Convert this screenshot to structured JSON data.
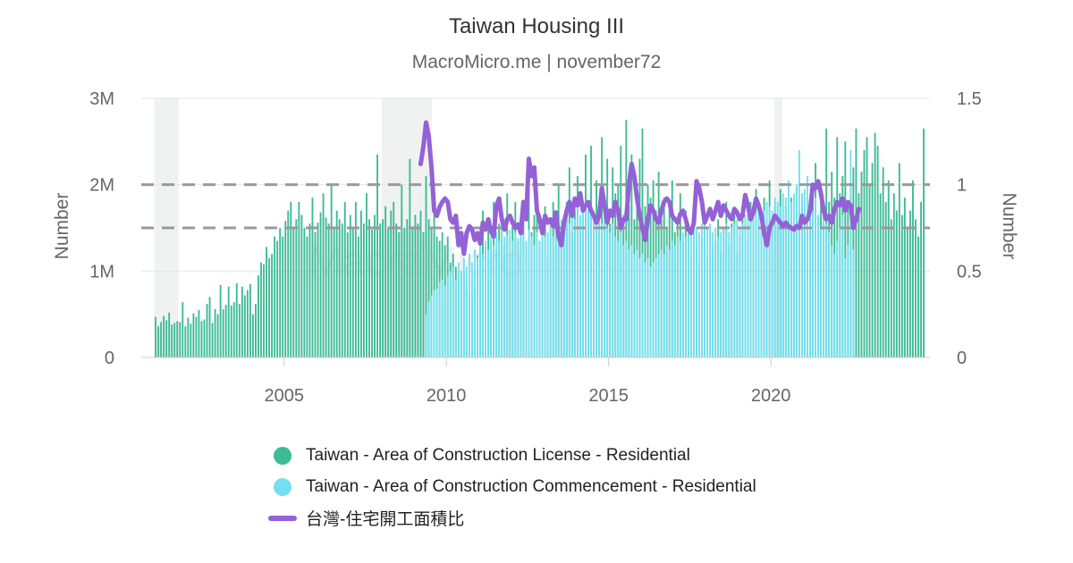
{
  "title": "Taiwan Housing III",
  "subtitle": "MacroMicro.me | november72",
  "watermark": "MacroMicro",
  "colors": {
    "license": "#3dbb94",
    "commencement": "#74dff0",
    "ratio": "#9461d6",
    "grid": "#e5e5e5",
    "shade": "#f0f2f1",
    "dash": "#9a9a9a",
    "axis_text": "#666666"
  },
  "chart_data": {
    "type": "bar",
    "title": "Taiwan Housing III",
    "subtitle": "MacroMicro.me | november72",
    "xlim": [
      2000.6,
      2024.9
    ],
    "x_ticks": [
      2005,
      2010,
      2015,
      2020
    ],
    "y_left": {
      "label": "Number",
      "lim": [
        0,
        3000000
      ],
      "ticks": [
        0,
        1000000,
        2000000,
        3000000
      ],
      "tick_labels": [
        "0",
        "1M",
        "2M",
        "3M"
      ]
    },
    "y_right": {
      "label": "Number",
      "lim": [
        0,
        1.5
      ],
      "ticks": [
        0,
        0.5,
        1,
        1.5
      ],
      "tick_labels": [
        "0",
        "0.5",
        "1",
        "1.5"
      ]
    },
    "reference_lines_right_axis": [
      1.0,
      0.75
    ],
    "recession_shading": [
      [
        2001.0,
        2001.75
      ],
      [
        2008.0,
        2009.55
      ],
      [
        2020.1,
        2020.35
      ]
    ],
    "grid": true,
    "legend_position": "bottom",
    "series": [
      {
        "name": "Taiwan - Area of Construction License - Residential",
        "type": "bar",
        "axis": "left",
        "start": [
          2001,
          1
        ],
        "frequency": "monthly",
        "values": [
          470000,
          360000,
          410000,
          480000,
          430000,
          520000,
          380000,
          400000,
          420000,
          410000,
          640000,
          360000,
          460000,
          390000,
          510000,
          470000,
          550000,
          420000,
          440000,
          620000,
          700000,
          400000,
          560000,
          500000,
          840000,
          560000,
          610000,
          820000,
          600000,
          640000,
          860000,
          620000,
          820000,
          720000,
          780000,
          850000,
          500000,
          620000,
          950000,
          1100000,
          1080000,
          1280000,
          1150000,
          1200000,
          1400000,
          1350000,
          1500000,
          1400000,
          1580000,
          1700000,
          1800000,
          1500000,
          1600000,
          1800000,
          1650000,
          1500000,
          1400000,
          1550000,
          1850000,
          1450000,
          1560000,
          1680000,
          1900000,
          1620000,
          1550000,
          2000000,
          1500000,
          1700000,
          1600000,
          1550000,
          1800000,
          1450000,
          1650000,
          1500000,
          1800000,
          1400000,
          1700000,
          1550000,
          1900000,
          1600000,
          1480000,
          1650000,
          2350000,
          1550000,
          1600000,
          1750000,
          1500000,
          1700000,
          1800000,
          1550000,
          1450000,
          2000000,
          1500000,
          1600000,
          2300000,
          1500000,
          1650000,
          1550000,
          1700000,
          1450000,
          2100000,
          1600000,
          1500000,
          1750000,
          1400000,
          1350000,
          1450000,
          1300000,
          1400000,
          1100000,
          1200000,
          1050000,
          1000000,
          950000,
          980000,
          800000,
          750000,
          700000,
          780000,
          1180000,
          1450000,
          1700000,
          1300000,
          1600000,
          1350000,
          1800000,
          1250000,
          1550000,
          1700000,
          1300000,
          1900000,
          1200000,
          1500000,
          1800000,
          1350000,
          1600000,
          1700000,
          1300000,
          2100000,
          1450000,
          1650000,
          1900000,
          1350000,
          1550000,
          1750000,
          1200000,
          1500000,
          1800000,
          1600000,
          2000000,
          1350000,
          1550000,
          1800000,
          2200000,
          1450000,
          1700000,
          2100000,
          1500000,
          1650000,
          2350000,
          1700000,
          2450000,
          1550000,
          2050000,
          1700000,
          2550000,
          1800000,
          2300000,
          1550000,
          2200000,
          1900000,
          2000000,
          2450000,
          1650000,
          2750000,
          1750000,
          2350000,
          1600000,
          1950000,
          2300000,
          2650000,
          1750000,
          2000000,
          1850000,
          2050000,
          1700000,
          2150000,
          1600000,
          1850000,
          1500000,
          1750000,
          2050000,
          1450000,
          1600000,
          1900000,
          1350000,
          1700000,
          1500000,
          1200000,
          1550000,
          1300000,
          1100000,
          1400000,
          1650000,
          1150000,
          1450000,
          1250000,
          1350000,
          1600000,
          1200000,
          1500000,
          1800000,
          1300000,
          1550000,
          1650000,
          1200000,
          1400000,
          1700000,
          1350000,
          1500000,
          1800000,
          1600000,
          1950000,
          1500000,
          1700000,
          1850000,
          1600000,
          2050000,
          1550000,
          1800000,
          1650000,
          1950000,
          1500000,
          1750000,
          1600000,
          1850000,
          1550000,
          2000000,
          1700000,
          1900000,
          1600000,
          1450000,
          1700000,
          1850000,
          2250000,
          1650000,
          1900000,
          1750000,
          2650000,
          1800000,
          2150000,
          1850000,
          2550000,
          1900000,
          2100000,
          2500000,
          1800000,
          2000000,
          2200000,
          2650000,
          1900000,
          2150000,
          2400000,
          2550000,
          2000000,
          2250000,
          2600000,
          2450000,
          1900000,
          2200000,
          1800000,
          2050000,
          1600000,
          1900000,
          1700000,
          2250000,
          1650000,
          1850000,
          1500000,
          1700000,
          2050000,
          1600000,
          1400000,
          1800000,
          2650000
        ]
      },
      {
        "name": "Taiwan - Area of Construction Commencement - Residential",
        "type": "bar",
        "axis": "left",
        "start": [
          2009,
          5
        ],
        "frequency": "monthly",
        "values": [
          500000,
          650000,
          720000,
          780000,
          800000,
          870000,
          900000,
          830000,
          950000,
          1000000,
          1050000,
          900000,
          1100000,
          1000000,
          1150000,
          1050000,
          1200000,
          1100000,
          1250000,
          1150000,
          1300000,
          1200000,
          1350000,
          1250000,
          1400000,
          1300000,
          1450000,
          1350000,
          1500000,
          1400000,
          1420000,
          1480000,
          1350000,
          1450000,
          1380000,
          1500000,
          1420000,
          1350000,
          1480000,
          1400000,
          1300000,
          1450000,
          1350000,
          1500000,
          1400000,
          1450000,
          1550000,
          1400000,
          1500000,
          1450000,
          1600000,
          1500000,
          1650000,
          1550000,
          1700000,
          1600000,
          1750000,
          1650000,
          1800000,
          1700000,
          1750000,
          1650000,
          1700000,
          1600000,
          1650000,
          1550000,
          1600000,
          1500000,
          1450000,
          1550000,
          1400000,
          1350000,
          1450000,
          1300000,
          1350000,
          1250000,
          1300000,
          1200000,
          1250000,
          1150000,
          1200000,
          1100000,
          1150000,
          1050000,
          1100000,
          1150000,
          1200000,
          1250000,
          1200000,
          1300000,
          1250000,
          1350000,
          1300000,
          1400000,
          1350000,
          1450000,
          1400000,
          1500000,
          1450000,
          1550000,
          1500000,
          1450000,
          1550000,
          1600000,
          1500000,
          1550000,
          1450000,
          1500000,
          1400000,
          1450000,
          1500000,
          1550000,
          1450000,
          1500000,
          1550000,
          1600000,
          1500000,
          1550000,
          1650000,
          1700000,
          1600000,
          1650000,
          1700000,
          1750000,
          1650000,
          1700000,
          1800000,
          1750000,
          1700000,
          1850000,
          1800000,
          1750000,
          1900000,
          1850000,
          2050000,
          1800000,
          1900000,
          2000000,
          2400000,
          1900000,
          1950000,
          2100000,
          1800000,
          1700000,
          1850000,
          1650000,
          1500000,
          1600000,
          1550000,
          1450000,
          1300000,
          1200000,
          1350000,
          1500000,
          1650000,
          1150000,
          1300000,
          2400000,
          1250000
        ]
      },
      {
        "name": "台灣-住宅開工面積比",
        "type": "line",
        "axis": "right",
        "start": [
          2009,
          3
        ],
        "frequency": "monthly",
        "values": [
          1.12,
          1.22,
          1.36,
          1.28,
          1.1,
          0.85,
          0.82,
          0.87,
          0.9,
          0.92,
          0.9,
          0.8,
          0.78,
          0.82,
          0.65,
          0.72,
          0.6,
          0.72,
          0.76,
          0.74,
          0.68,
          0.72,
          0.66,
          0.78,
          0.74,
          0.8,
          0.73,
          0.7,
          0.88,
          0.92,
          0.8,
          0.74,
          0.8,
          0.82,
          0.78,
          0.75,
          0.77,
          0.72,
          0.9,
          0.8,
          1.15,
          1.05,
          1.1,
          0.85,
          0.8,
          0.72,
          0.82,
          0.78,
          0.8,
          0.76,
          0.84,
          0.7,
          0.65,
          0.78,
          0.85,
          0.9,
          0.82,
          0.92,
          0.88,
          0.95,
          0.85,
          0.88,
          0.9,
          0.85,
          0.82,
          0.78,
          0.82,
          0.98,
          0.88,
          0.78,
          0.85,
          0.82,
          0.9,
          0.85,
          0.75,
          0.8,
          0.8,
          1.0,
          1.12,
          1.05,
          0.92,
          0.82,
          0.75,
          0.68,
          0.8,
          0.88,
          0.85,
          0.8,
          0.78,
          0.85,
          0.9,
          0.92,
          0.9,
          0.82,
          0.8,
          0.78,
          0.83,
          0.85,
          0.8,
          0.74,
          0.72,
          0.78,
          1.02,
          0.98,
          0.9,
          0.78,
          0.82,
          0.86,
          0.8,
          0.85,
          0.9,
          0.82,
          0.88,
          0.85,
          0.82,
          0.8,
          0.86,
          0.84,
          0.8,
          0.82,
          0.94,
          0.88,
          0.8,
          0.84,
          0.92,
          0.88,
          0.82,
          0.72,
          0.65,
          0.75,
          0.78,
          0.82,
          0.8,
          0.78,
          0.76,
          0.78,
          0.76,
          0.75,
          0.74,
          0.76,
          0.75,
          0.82,
          0.78,
          0.8,
          0.85,
          1.0,
          0.98,
          1.02,
          0.95,
          0.85,
          0.8,
          0.82,
          0.78,
          0.86,
          0.9,
          0.88,
          0.92,
          0.85,
          0.9,
          0.88,
          0.75,
          0.8,
          0.86
        ]
      }
    ]
  }
}
